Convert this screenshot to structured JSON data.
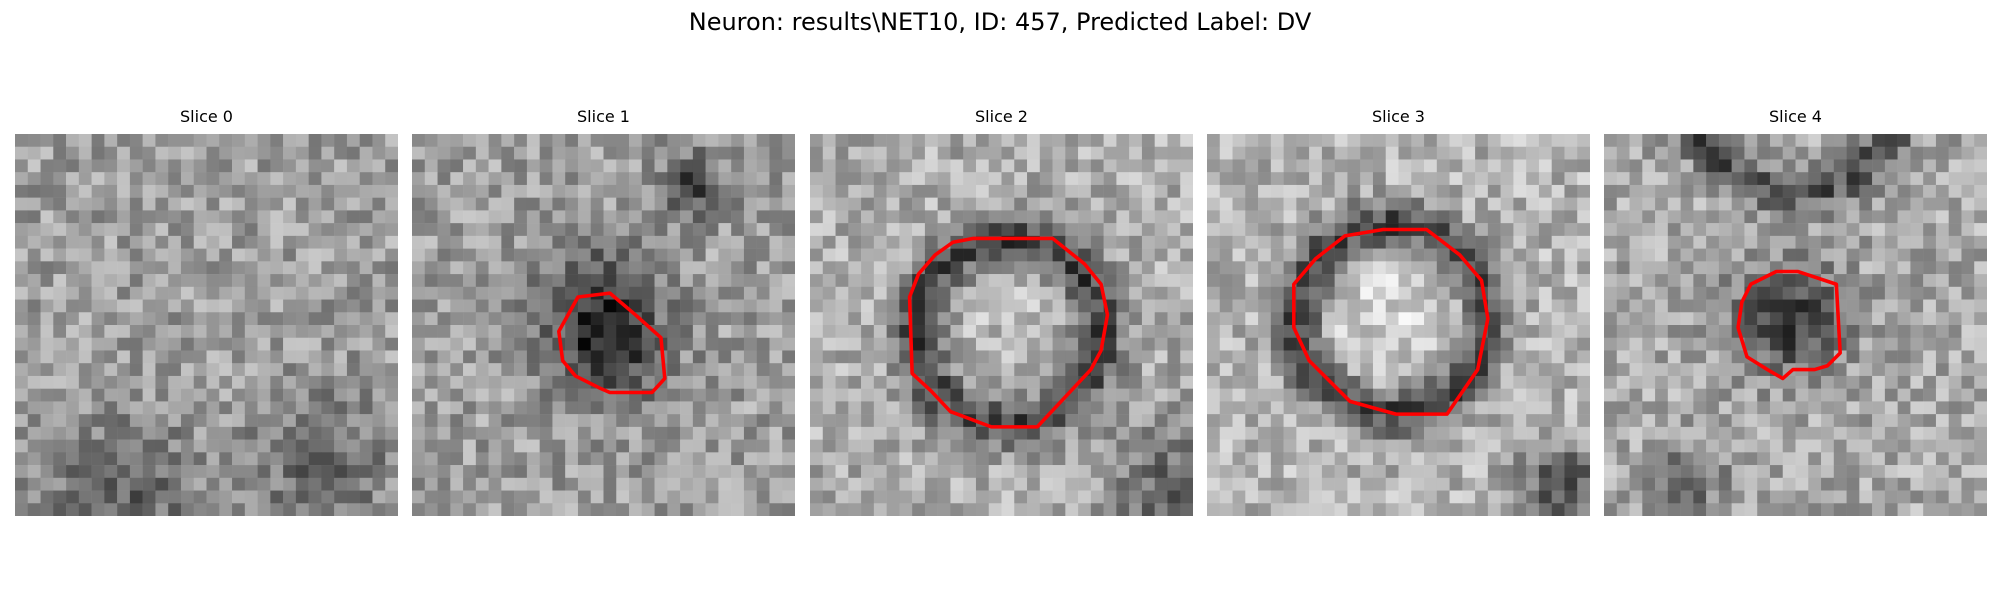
{
  "figure": {
    "title": "Neuron: results\\NET10, ID: 457, Predicted Label: DV"
  },
  "colors": {
    "background": "#ffffff",
    "contour": "#ff0000",
    "image_colormap": "gray"
  },
  "slices": [
    {
      "title": "Slice 0",
      "contour_visible": false
    },
    {
      "title": "Slice 1",
      "contour_visible": true
    },
    {
      "title": "Slice 2",
      "contour_visible": true
    },
    {
      "title": "Slice 3",
      "contour_visible": true
    },
    {
      "title": "Slice 4",
      "contour_visible": true
    }
  ]
}
